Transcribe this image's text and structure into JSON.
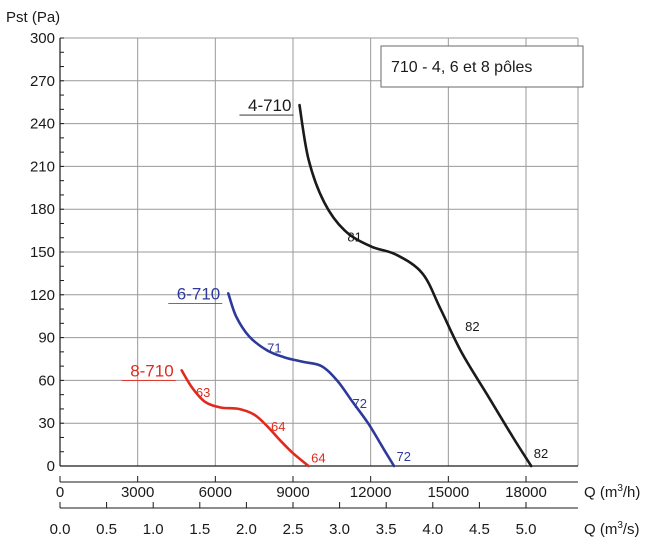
{
  "chart_data": {
    "type": "line",
    "title": "",
    "ylabel": "Pst (Pa)",
    "xlabel": "Q (m³/h)",
    "ylim": [
      0,
      300
    ],
    "xlim": [
      0,
      19800
    ],
    "yticks": [
      0,
      30,
      60,
      90,
      120,
      150,
      180,
      210,
      240,
      270,
      300
    ],
    "xticks": [
      0,
      3000,
      6000,
      9000,
      12000,
      15000,
      18000
    ],
    "xtick_labels": [
      "0",
      "3000",
      "6000",
      "9000",
      "12000",
      "15000",
      "18000"
    ],
    "x2label": "Q (m³/s)",
    "x2_per_unit": 3600,
    "x2ticks": [
      0.0,
      0.5,
      1.0,
      1.5,
      2.0,
      2.5,
      3.0,
      3.5,
      4.0,
      4.5,
      5.0
    ],
    "x2tick_labels": [
      "0.0",
      "0.5",
      "1.0",
      "1.5",
      "2.0",
      "2.5",
      "3.0",
      "3.5",
      "4.0",
      "4.5",
      "5.0"
    ],
    "grid": true,
    "annotation": "710 - 4, 6 et 8 pôles",
    "series": [
      {
        "name": "4-710",
        "color": "#1a1a1a",
        "x": [
          9250,
          9600,
          10200,
          11000,
          12000,
          13000,
          14000,
          14700,
          15500,
          16500,
          17500,
          18200
        ],
        "y": [
          253,
          215,
          185,
          165,
          154,
          148,
          135,
          110,
          80,
          50,
          20,
          0
        ],
        "point_labels": [
          {
            "text": "81",
            "x": 11100,
            "y": 161
          },
          {
            "text": "82",
            "x": 15650,
            "y": 98
          },
          {
            "text": "82",
            "x": 18300,
            "y": 9
          }
        ]
      },
      {
        "name": "6-710",
        "color": "#2e3a9a",
        "x": [
          6500,
          6800,
          7300,
          8000,
          8700,
          9400,
          10100,
          10700,
          11300,
          11900,
          12500,
          12900
        ],
        "y": [
          121,
          105,
          91,
          81,
          76,
          73,
          70,
          60,
          45,
          30,
          12,
          0
        ],
        "point_labels": [
          {
            "text": "71",
            "x": 8000,
            "y": 83
          },
          {
            "text": "72",
            "x": 11300,
            "y": 44
          },
          {
            "text": "72",
            "x": 13000,
            "y": 7
          }
        ]
      },
      {
        "name": "8-710",
        "color": "#e02a1e",
        "x": [
          4700,
          5100,
          5600,
          6200,
          6900,
          7500,
          8000,
          8500,
          9000,
          9600
        ],
        "y": [
          67,
          55,
          45,
          41,
          40,
          36,
          28,
          18,
          9,
          0
        ],
        "point_labels": [
          {
            "text": "63",
            "x": 5250,
            "y": 52
          },
          {
            "text": "64",
            "x": 8150,
            "y": 28
          },
          {
            "text": "64",
            "x": 9700,
            "y": 6
          }
        ]
      }
    ]
  }
}
